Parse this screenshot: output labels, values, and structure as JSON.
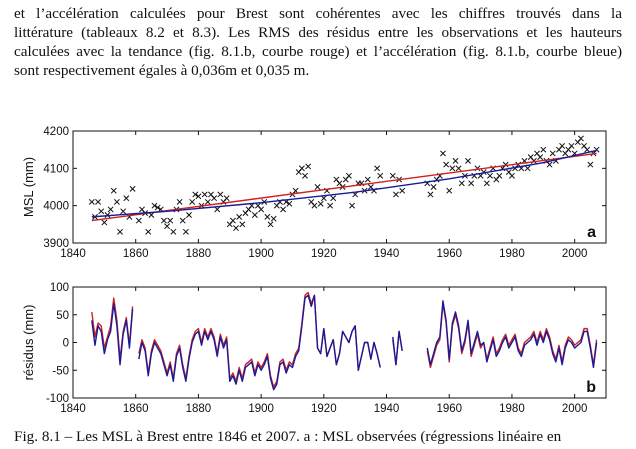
{
  "paragraph": {
    "line1": "et l’accélération calculées pour Brest sont cohérentes avec les chiffres trouvés dans la",
    "line2": "littérature (tableaux 8.2 et 8.3). Les RMS des résidus entre les observations et les hauteurs",
    "line3": "calculées avec la tendance (fig. 8.1.b, courbe rouge) et l’accélération (fig. 8.1.b, courbe bleue)",
    "line4": "sont respectivement égales à 0,036m et 0,035 m."
  },
  "caption": "Fig. 8.1 – Les MSL à Brest entre 1846 et 2007. a : MSL observées (régressions linéaire en",
  "colors": {
    "trend": "#cc2222",
    "acceleration": "#1a1a99",
    "marker": "#111111"
  },
  "chart_data": [
    {
      "type": "scatter",
      "panel_label": "a",
      "ylabel": "MSL (mm)",
      "xlim": [
        1840,
        2010
      ],
      "ylim": [
        3900,
        4200
      ],
      "xticks": [
        1840,
        1860,
        1880,
        1900,
        1920,
        1940,
        1960,
        1980,
        2000
      ],
      "yticks": [
        3900,
        4000,
        4100,
        4200
      ],
      "points": [
        [
          1846,
          4010
        ],
        [
          1847,
          3970
        ],
        [
          1848,
          4010
        ],
        [
          1849,
          3985
        ],
        [
          1850,
          3955
        ],
        [
          1851,
          3975
        ],
        [
          1852,
          3990
        ],
        [
          1853,
          4040
        ],
        [
          1854,
          4010
        ],
        [
          1855,
          3930
        ],
        [
          1856,
          3985
        ],
        [
          1857,
          4020
        ],
        [
          1858,
          3970
        ],
        [
          1859,
          4045
        ],
        [
          1861,
          3960
        ],
        [
          1862,
          3990
        ],
        [
          1863,
          3980
        ],
        [
          1864,
          3930
        ],
        [
          1865,
          3975
        ],
        [
          1866,
          4000
        ],
        [
          1867,
          3995
        ],
        [
          1868,
          3990
        ],
        [
          1869,
          3960
        ],
        [
          1870,
          3945
        ],
        [
          1871,
          3960
        ],
        [
          1872,
          3930
        ],
        [
          1873,
          3990
        ],
        [
          1874,
          4010
        ],
        [
          1875,
          3960
        ],
        [
          1876,
          3930
        ],
        [
          1877,
          3975
        ],
        [
          1878,
          4010
        ],
        [
          1879,
          4030
        ],
        [
          1880,
          4025
        ],
        [
          1881,
          4000
        ],
        [
          1882,
          4030
        ],
        [
          1883,
          4010
        ],
        [
          1884,
          4030
        ],
        [
          1885,
          4020
        ],
        [
          1886,
          3990
        ],
        [
          1887,
          4030
        ],
        [
          1888,
          4010
        ],
        [
          1889,
          4020
        ],
        [
          1890,
          3950
        ],
        [
          1891,
          3960
        ],
        [
          1892,
          3940
        ],
        [
          1893,
          3970
        ],
        [
          1894,
          3950
        ],
        [
          1895,
          3980
        ],
        [
          1896,
          3990
        ],
        [
          1897,
          4000
        ],
        [
          1898,
          3975
        ],
        [
          1899,
          4000
        ],
        [
          1900,
          3990
        ],
        [
          1901,
          4010
        ],
        [
          1902,
          3970
        ],
        [
          1903,
          3950
        ],
        [
          1904,
          3965
        ],
        [
          1905,
          4000
        ],
        [
          1906,
          4010
        ],
        [
          1907,
          3990
        ],
        [
          1908,
          4010
        ],
        [
          1909,
          4005
        ],
        [
          1910,
          4030
        ],
        [
          1911,
          4040
        ],
        [
          1912,
          4090
        ],
        [
          1913,
          4100
        ],
        [
          1914,
          4080
        ],
        [
          1915,
          4105
        ],
        [
          1916,
          4010
        ],
        [
          1917,
          4000
        ],
        [
          1918,
          4050
        ],
        [
          1919,
          4005
        ],
        [
          1920,
          4020
        ],
        [
          1921,
          4040
        ],
        [
          1922,
          4000
        ],
        [
          1923,
          4020
        ],
        [
          1924,
          4070
        ],
        [
          1925,
          4060
        ],
        [
          1926,
          4050
        ],
        [
          1927,
          4070
        ],
        [
          1928,
          4080
        ],
        [
          1929,
          4000
        ],
        [
          1930,
          4030
        ],
        [
          1931,
          4060
        ],
        [
          1932,
          4060
        ],
        [
          1933,
          4040
        ],
        [
          1934,
          4070
        ],
        [
          1935,
          4050
        ],
        [
          1936,
          4040
        ],
        [
          1937,
          4100
        ],
        [
          1938,
          4080
        ],
        [
          1942,
          4080
        ],
        [
          1943,
          4030
        ],
        [
          1944,
          4070
        ],
        [
          1945,
          4040
        ],
        [
          1953,
          4060
        ],
        [
          1954,
          4030
        ],
        [
          1955,
          4050
        ],
        [
          1956,
          4070
        ],
        [
          1957,
          4080
        ],
        [
          1958,
          4140
        ],
        [
          1959,
          4110
        ],
        [
          1960,
          4040
        ],
        [
          1961,
          4100
        ],
        [
          1962,
          4120
        ],
        [
          1963,
          4100
        ],
        [
          1964,
          4060
        ],
        [
          1965,
          4080
        ],
        [
          1966,
          4120
        ],
        [
          1967,
          4060
        ],
        [
          1968,
          4080
        ],
        [
          1969,
          4100
        ],
        [
          1970,
          4080
        ],
        [
          1971,
          4090
        ],
        [
          1972,
          4060
        ],
        [
          1973,
          4080
        ],
        [
          1974,
          4100
        ],
        [
          1975,
          4070
        ],
        [
          1976,
          4080
        ],
        [
          1977,
          4100
        ],
        [
          1978,
          4110
        ],
        [
          1979,
          4090
        ],
        [
          1980,
          4080
        ],
        [
          1981,
          4100
        ],
        [
          1982,
          4110
        ],
        [
          1983,
          4100
        ],
        [
          1984,
          4120
        ],
        [
          1985,
          4100
        ],
        [
          1986,
          4130
        ],
        [
          1987,
          4120
        ],
        [
          1988,
          4140
        ],
        [
          1989,
          4130
        ],
        [
          1990,
          4150
        ],
        [
          1991,
          4120
        ],
        [
          1992,
          4110
        ],
        [
          1993,
          4140
        ],
        [
          1994,
          4120
        ],
        [
          1995,
          4150
        ],
        [
          1996,
          4160
        ],
        [
          1997,
          4140
        ],
        [
          1998,
          4150
        ],
        [
          1999,
          4160
        ],
        [
          2000,
          4140
        ],
        [
          2001,
          4170
        ],
        [
          2002,
          4180
        ],
        [
          2003,
          4160
        ],
        [
          2004,
          4150
        ],
        [
          2005,
          4110
        ],
        [
          2006,
          4140
        ],
        [
          2007,
          4150
        ]
      ],
      "lines": [
        {
          "color": "trend",
          "points": [
            [
              1846,
              3960
            ],
            [
              2007,
              4140
            ]
          ]
        },
        {
          "color": "acceleration",
          "points": [
            [
              1846,
              3970
            ],
            [
              1870,
              3985
            ],
            [
              1900,
              4008
            ],
            [
              1930,
              4036
            ],
            [
              1960,
              4072
            ],
            [
              1990,
              4115
            ],
            [
              2007,
              4148
            ]
          ]
        }
      ]
    },
    {
      "type": "line",
      "panel_label": "b",
      "ylabel": "résidus (mm)",
      "xlim": [
        1840,
        2010
      ],
      "ylim": [
        -100,
        100
      ],
      "xticks": [
        1840,
        1860,
        1880,
        1900,
        1920,
        1940,
        1960,
        1980,
        2000
      ],
      "yticks": [
        -100,
        -50,
        0,
        50,
        100
      ],
      "segments_x": [
        [
          1846,
          1859
        ],
        [
          1861,
          1938
        ],
        [
          1942,
          1945
        ],
        [
          1953,
          2007
        ]
      ],
      "series": [
        {
          "color": "acceleration",
          "segments": [
            [
              40,
              -5,
              30,
              20,
              -20,
              5,
              20,
              70,
              30,
              -40,
              15,
              40,
              -10,
              60
            ],
            [
              -30,
              0,
              -15,
              -60,
              -20,
              0,
              -10,
              -20,
              -40,
              -60,
              -40,
              -70,
              -25,
              -10,
              -45,
              -70,
              -30,
              0,
              15,
              20,
              -5,
              20,
              5,
              20,
              5,
              -25,
              10,
              -10,
              5,
              -70,
              -60,
              -75,
              -50,
              -70,
              -45,
              -40,
              -35,
              -60,
              -40,
              -50,
              -40,
              -25,
              -65,
              -85,
              -75,
              -40,
              -35,
              -55,
              -40,
              -45,
              -25,
              -15,
              30,
              80,
              85,
              65,
              85,
              -10,
              -20,
              25,
              -25,
              -10,
              5,
              -40,
              -20,
              20,
              10,
              0,
              20,
              30,
              -50,
              -25,
              0,
              0,
              -30,
              0,
              -20,
              -45
            ],
            [
              10,
              -40,
              20,
              -15
            ],
            [
              -10,
              -40,
              -20,
              0,
              10,
              75,
              40,
              -30,
              35,
              55,
              30,
              -15,
              5,
              40,
              -20,
              0,
              20,
              -5,
              0,
              -35,
              -15,
              5,
              -25,
              -15,
              0,
              10,
              -10,
              0,
              10,
              -15,
              -25,
              -5,
              0,
              5,
              15,
              -5,
              15,
              0,
              20,
              5,
              -20,
              -35,
              -10,
              -40,
              -10,
              5,
              0,
              -10,
              -5,
              0,
              20,
              20,
              -10,
              -45,
              0
            ]
          ]
        },
        {
          "color": "trend",
          "segments": [
            [
              55,
              10,
              35,
              30,
              -10,
              10,
              30,
              80,
              40,
              -30,
              20,
              45,
              -5,
              65
            ],
            [
              -20,
              5,
              -10,
              -55,
              -15,
              5,
              -5,
              -15,
              -35,
              -55,
              -35,
              -65,
              -20,
              -5,
              -40,
              -65,
              -25,
              5,
              20,
              25,
              0,
              25,
              10,
              25,
              10,
              -20,
              15,
              -5,
              10,
              -65,
              -55,
              -70,
              -45,
              -65,
              -40,
              -35,
              -30,
              -55,
              -35,
              -45,
              -35,
              -20,
              -60,
              -80,
              -70,
              -35,
              -30,
              -50,
              -35,
              -40,
              -20,
              -10,
              35,
              85,
              90,
              70,
              85,
              -10,
              -20,
              25,
              -25,
              -10,
              5,
              -40,
              -20,
              20,
              10,
              0,
              20,
              30,
              -50,
              -25,
              0,
              0,
              -30,
              0,
              -20,
              -45
            ],
            [
              5,
              -40,
              20,
              -15
            ],
            [
              -15,
              -45,
              -25,
              -5,
              5,
              70,
              35,
              -35,
              30,
              50,
              25,
              -20,
              0,
              35,
              -25,
              -5,
              15,
              -10,
              0,
              -30,
              -10,
              10,
              -20,
              -10,
              5,
              15,
              -5,
              5,
              15,
              -10,
              -20,
              0,
              5,
              10,
              20,
              0,
              20,
              5,
              25,
              10,
              -15,
              -30,
              -5,
              -35,
              -5,
              10,
              5,
              -5,
              0,
              5,
              25,
              25,
              -5,
              -40,
              5
            ]
          ]
        }
      ]
    }
  ]
}
